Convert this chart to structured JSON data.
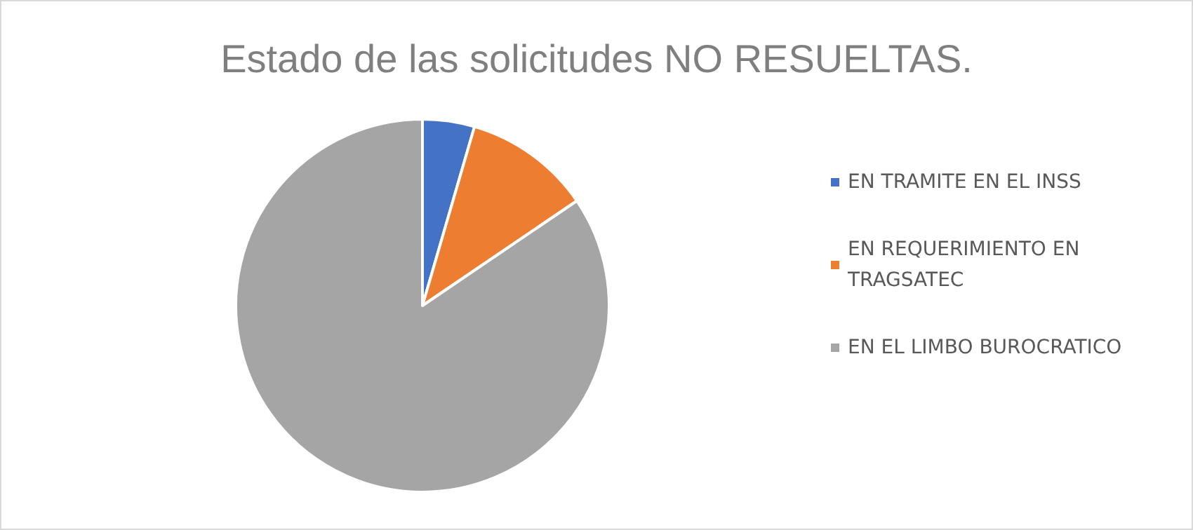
{
  "chart_data": {
    "type": "pie",
    "title": "Estado de las solicitudes NO RESUELTAS.",
    "categories": [
      "EN TRAMITE EN EL INSS",
      "EN REQUERIMIENTO EN TRAGSATEC",
      "EN EL LIMBO BUROCRATICO"
    ],
    "values": [
      4.5,
      11,
      84.5
    ],
    "colors": [
      "#4472c4",
      "#ed7d31",
      "#a5a5a5"
    ],
    "legend": "right"
  }
}
